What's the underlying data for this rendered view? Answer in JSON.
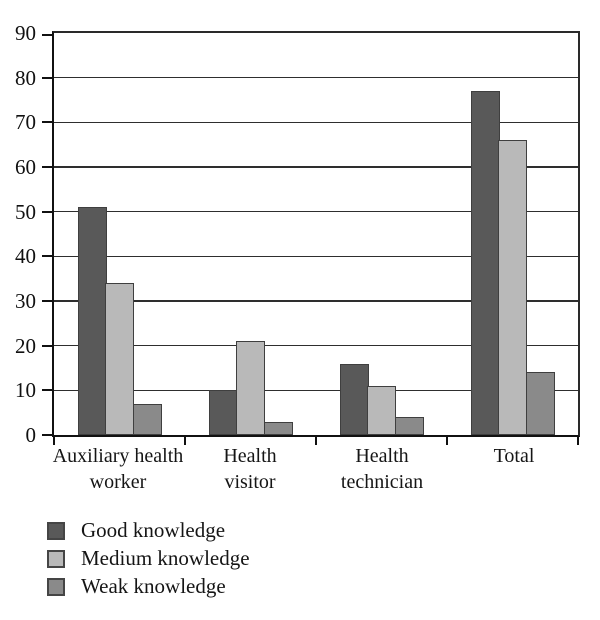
{
  "chart_data": {
    "type": "bar",
    "title": "",
    "xlabel": "",
    "ylabel": "",
    "categories": [
      "Auxiliary health worker",
      "Health visitor",
      "Health technician",
      "Total"
    ],
    "categories_wrapped": [
      [
        "Auxiliary health",
        "worker"
      ],
      [
        "Health",
        "visitor"
      ],
      [
        "Health",
        "technician"
      ],
      [
        "Total"
      ]
    ],
    "series": [
      {
        "name": "Good knowledge",
        "color": "#595959",
        "values": [
          51,
          10,
          16,
          77
        ]
      },
      {
        "name": "Medium knowledge",
        "color": "#b9b9b9",
        "values": [
          34,
          21,
          11,
          66
        ]
      },
      {
        "name": "Weak knowledge",
        "color": "#8a8a8a",
        "values": [
          7,
          3,
          4,
          14
        ]
      }
    ],
    "ylim": [
      0,
      90
    ],
    "yticks": [
      0,
      10,
      20,
      30,
      40,
      50,
      60,
      70,
      80,
      90
    ],
    "grid": true,
    "gridline_color": "#2e2e2e",
    "axis_color": "#111111",
    "bar_border_color": "#3f3f3f",
    "legend_position": "bottom-left"
  }
}
